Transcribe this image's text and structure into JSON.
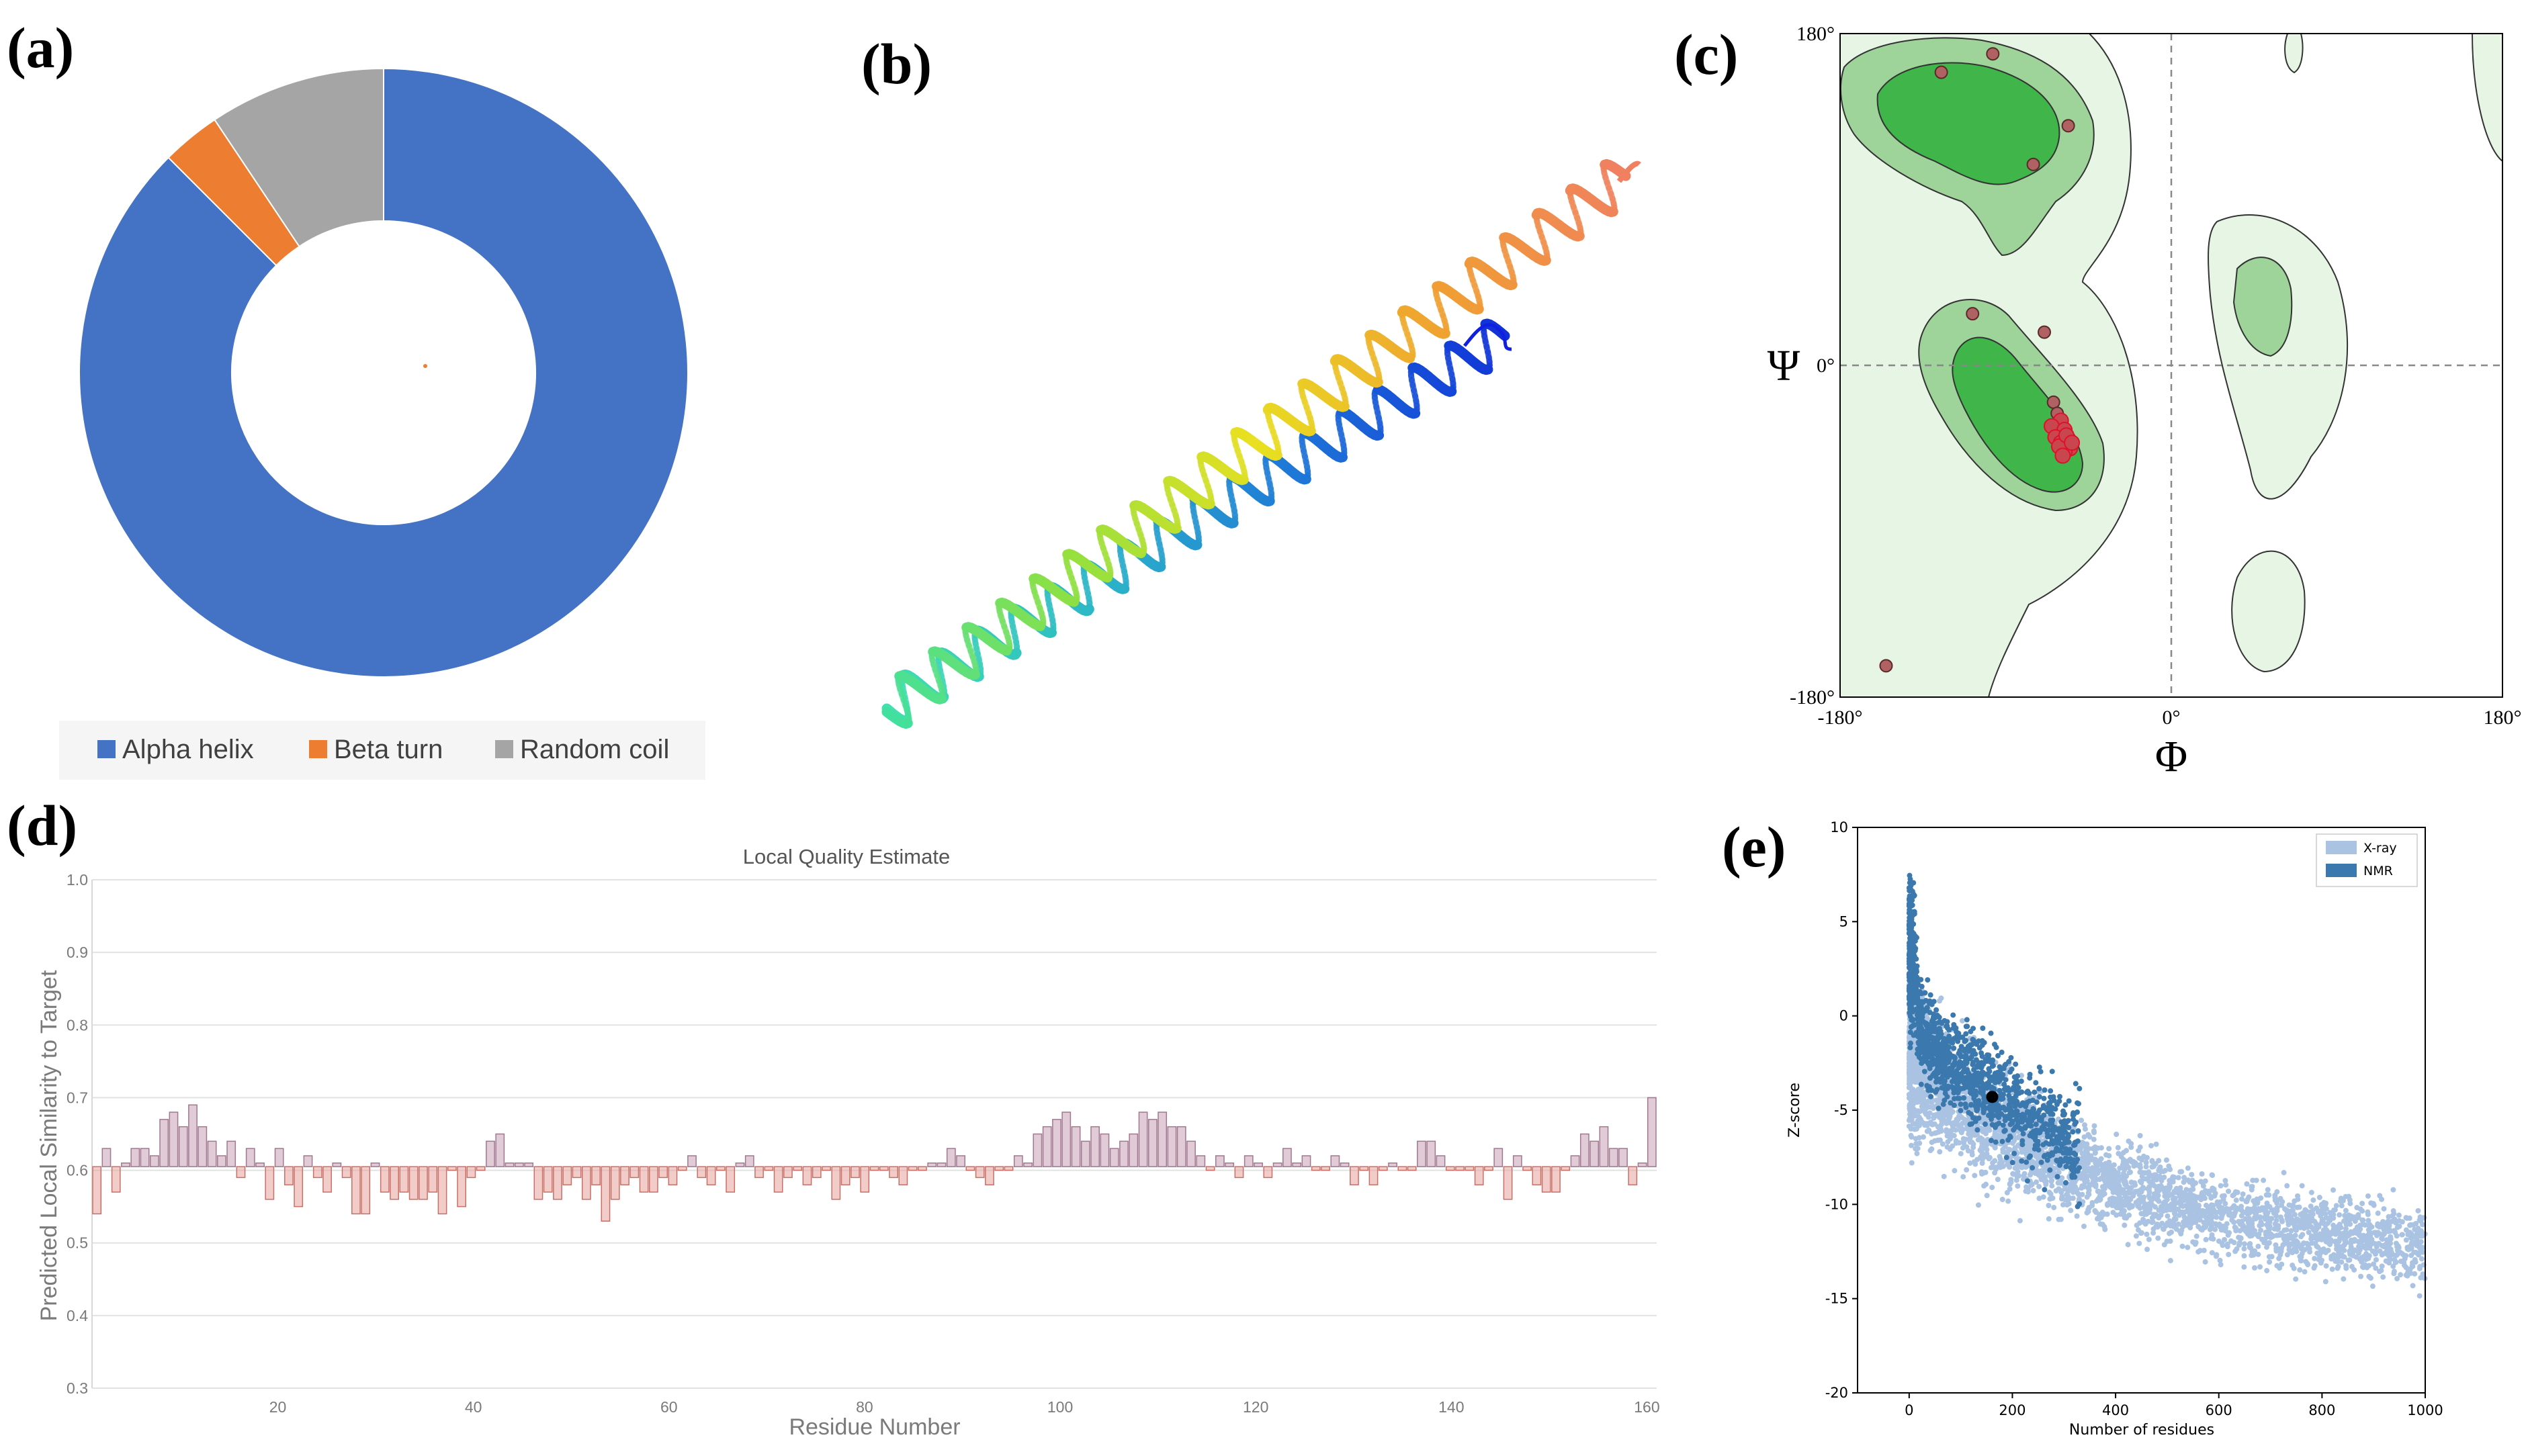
{
  "panels": {
    "a": "(a)",
    "b": "(b)",
    "c": "(c)",
    "d": "(d)",
    "e": "(e)"
  },
  "chart_data": [
    {
      "id": "a",
      "type": "pie",
      "variant": "donut",
      "labels": [
        "Alpha helix",
        "Beta turn",
        "Random coil"
      ],
      "values": [
        87.5,
        3.13,
        9.37
      ],
      "colors": [
        "#4472c4",
        "#ed7d31",
        "#a5a5a5"
      ],
      "legend": "bottom"
    },
    {
      "id": "b",
      "type": "other",
      "description_free": true,
      "note": "3D ribbon model of a long alpha-helical hairpin colored blue to red (N to C terminus)"
    },
    {
      "id": "c",
      "type": "scatter",
      "title": "",
      "xlabel": "Φ",
      "ylabel": "Ψ",
      "xlim": [
        -180,
        180
      ],
      "ylim": [
        -180,
        180
      ],
      "xticks": [
        "-180°",
        "0°",
        "180°"
      ],
      "yticks": [
        "180°",
        "0°",
        "-180°"
      ],
      "points": [
        {
          "phi": -125,
          "psi": 159
        },
        {
          "phi": -97,
          "psi": 169
        },
        {
          "phi": -56,
          "psi": 130
        },
        {
          "phi": -75,
          "psi": 109
        },
        {
          "phi": -108,
          "psi": 28
        },
        {
          "phi": -69,
          "psi": 18
        },
        {
          "phi": -155,
          "psi": -163
        },
        {
          "phi": -64,
          "psi": -20
        },
        {
          "phi": -62,
          "psi": -26
        },
        {
          "phi": -60,
          "psi": -30
        },
        {
          "phi": -65,
          "psi": -33
        },
        {
          "phi": -58,
          "psi": -35
        },
        {
          "phi": -63,
          "psi": -39
        },
        {
          "phi": -56,
          "psi": -40
        },
        {
          "phi": -60,
          "psi": -42
        },
        {
          "phi": -55,
          "psi": -45
        },
        {
          "phi": -58,
          "psi": -47
        },
        {
          "phi": -61,
          "psi": -44
        },
        {
          "phi": -57,
          "psi": -38
        },
        {
          "phi": -54,
          "psi": -42
        },
        {
          "phi": -59,
          "psi": -49
        }
      ]
    },
    {
      "id": "d",
      "type": "bar",
      "title": "Local Quality Estimate",
      "xlabel": "Residue Number",
      "ylabel": "Predicted Local Similarity to Target",
      "ylim": [
        0.3,
        1.0
      ],
      "yticks": [
        "0.3",
        "0.4",
        "0.5",
        "0.6",
        "0.7",
        "0.8",
        "0.9",
        "1.0"
      ],
      "xticks": [
        "20",
        "40",
        "60",
        "80",
        "100",
        "120",
        "140",
        "160"
      ],
      "xlim": [
        1,
        161
      ],
      "baseline": 0.605,
      "values": [
        0.54,
        0.63,
        0.57,
        0.61,
        0.63,
        0.63,
        0.62,
        0.67,
        0.68,
        0.66,
        0.69,
        0.66,
        0.64,
        0.62,
        0.64,
        0.59,
        0.63,
        0.61,
        0.56,
        0.63,
        0.58,
        0.55,
        0.62,
        0.59,
        0.57,
        0.61,
        0.59,
        0.54,
        0.54,
        0.61,
        0.57,
        0.56,
        0.57,
        0.56,
        0.56,
        0.57,
        0.54,
        0.6,
        0.55,
        0.59,
        0.6,
        0.64,
        0.65,
        0.61,
        0.61,
        0.61,
        0.56,
        0.57,
        0.56,
        0.58,
        0.59,
        0.56,
        0.58,
        0.53,
        0.56,
        0.58,
        0.59,
        0.57,
        0.57,
        0.59,
        0.58,
        0.6,
        0.62,
        0.59,
        0.58,
        0.6,
        0.57,
        0.61,
        0.62,
        0.59,
        0.6,
        0.57,
        0.59,
        0.6,
        0.58,
        0.59,
        0.6,
        0.56,
        0.58,
        0.59,
        0.57,
        0.6,
        0.6,
        0.59,
        0.58,
        0.6,
        0.6,
        0.61,
        0.61,
        0.63,
        0.62,
        0.6,
        0.59,
        0.58,
        0.6,
        0.6,
        0.62,
        0.61,
        0.65,
        0.66,
        0.67,
        0.68,
        0.66,
        0.64,
        0.66,
        0.65,
        0.63,
        0.64,
        0.65,
        0.68,
        0.67,
        0.68,
        0.66,
        0.66,
        0.64,
        0.62,
        0.6,
        0.62,
        0.61,
        0.59,
        0.62,
        0.61,
        0.59,
        0.61,
        0.63,
        0.61,
        0.62,
        0.6,
        0.6,
        0.62,
        0.61,
        0.58,
        0.6,
        0.58,
        0.6,
        0.61,
        0.6,
        0.6,
        0.64,
        0.64,
        0.62,
        0.6,
        0.6,
        0.6,
        0.58,
        0.6,
        0.63,
        0.56,
        0.62,
        0.6,
        0.58,
        0.57,
        0.57,
        0.6,
        0.62,
        0.65,
        0.64,
        0.66,
        0.63,
        0.63,
        0.58,
        0.61,
        0.7
      ],
      "colors": {
        "above": "#c9a0b5",
        "below": "#e8a39a"
      }
    },
    {
      "id": "e",
      "type": "scatter",
      "xlabel": "Number of residues",
      "ylabel": "Z-score",
      "xlim": [
        -100,
        1000
      ],
      "ylim": [
        -20,
        10
      ],
      "xticks": [
        "0",
        "200",
        "400",
        "600",
        "800",
        "1000"
      ],
      "yticks": [
        "10",
        "5",
        "0",
        "-5",
        "-10",
        "-15",
        "-20"
      ],
      "legend": [
        {
          "name": "X-ray",
          "color": "#aac3e2"
        },
        {
          "name": "NMR",
          "color": "#3a78ad"
        }
      ],
      "legend_position": "top-right",
      "highlight_point": {
        "x": 161,
        "y": -4.3,
        "color": "#000000"
      }
    }
  ]
}
